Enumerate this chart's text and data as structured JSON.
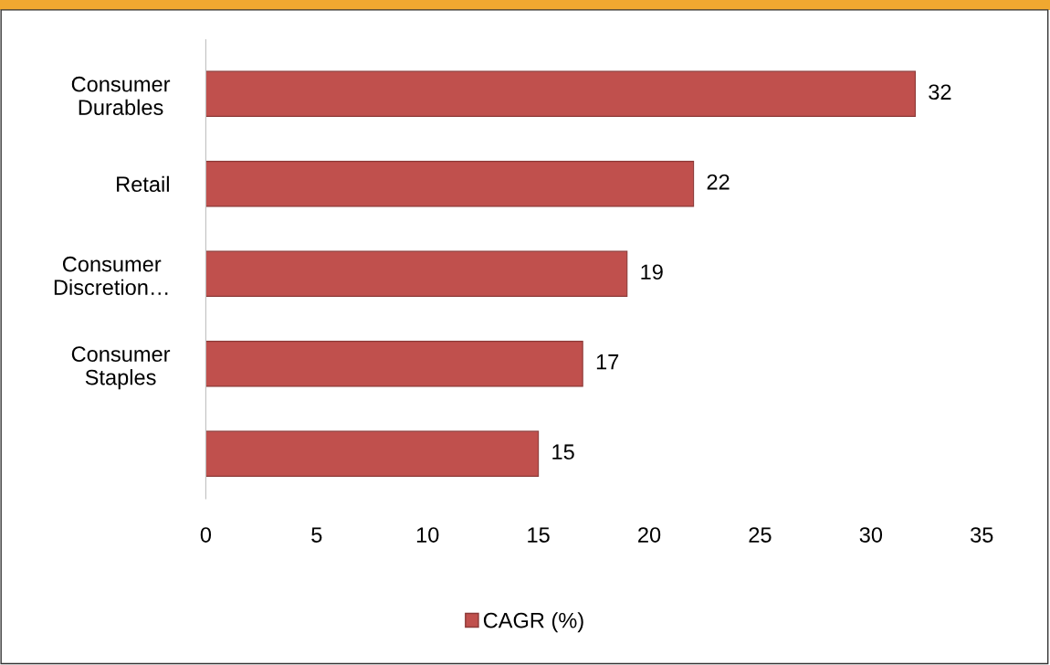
{
  "chart_data": {
    "type": "bar",
    "orientation": "horizontal",
    "categories": [
      "Consumer Durables",
      "Retail",
      "Consumer Discretion…",
      "Consumer Staples",
      null
    ],
    "series": [
      {
        "name": "CAGR (%)",
        "color": "#c0504d",
        "values": [
          32,
          22,
          19,
          17,
          15
        ]
      }
    ],
    "xlim": [
      0,
      35
    ],
    "xticks": [
      0,
      5,
      10,
      15,
      20,
      25,
      30,
      35
    ],
    "data_labels": true,
    "legend": "bottom",
    "grid": false
  }
}
